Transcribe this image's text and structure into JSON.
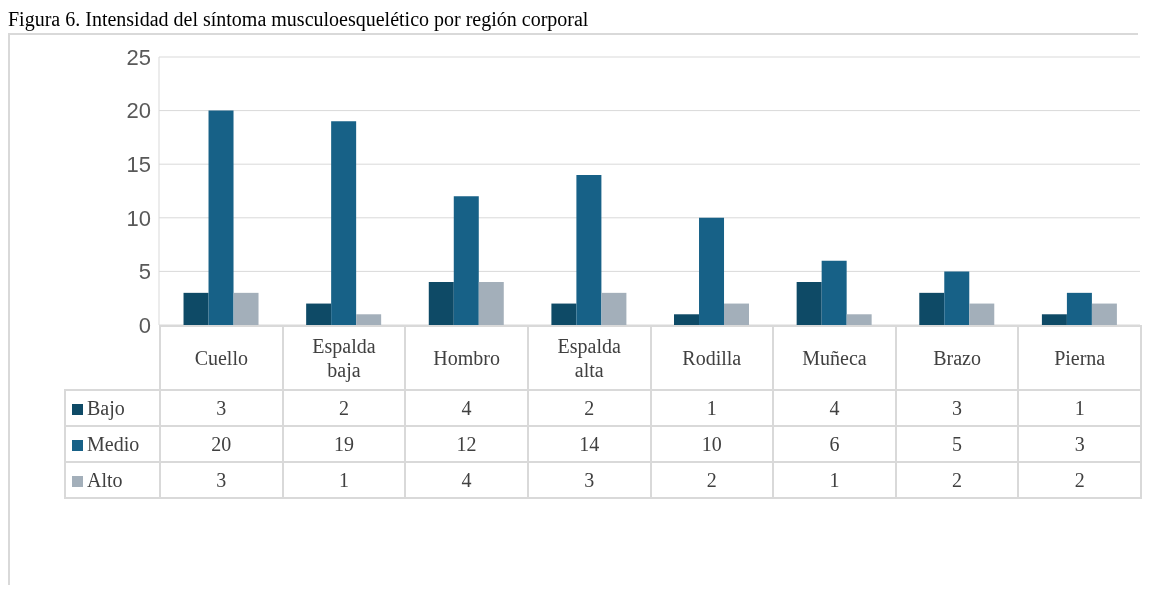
{
  "chart_data": {
    "type": "bar",
    "title": "Figura 6. Intensidad del síntoma musculoesquelético por región corporal",
    "categories": [
      "Cuello",
      "Espalda baja",
      "Hombro",
      "Espalda alta",
      "Rodilla",
      "Muñeca",
      "Brazo",
      "Pierna"
    ],
    "series": [
      {
        "name": "Bajo",
        "color": "#0e4a66",
        "values": [
          3,
          2,
          4,
          2,
          1,
          4,
          3,
          1
        ]
      },
      {
        "name": "Medio",
        "color": "#176187",
        "values": [
          20,
          19,
          12,
          14,
          10,
          6,
          5,
          3
        ]
      },
      {
        "name": "Alto",
        "color": "#a3afba",
        "values": [
          3,
          1,
          4,
          3,
          2,
          1,
          2,
          2
        ]
      }
    ],
    "ylim": [
      0,
      25
    ],
    "yticks": [
      0,
      5,
      10,
      15,
      20,
      25
    ],
    "grid": "y",
    "legend": "bottom",
    "data_labels": true
  }
}
